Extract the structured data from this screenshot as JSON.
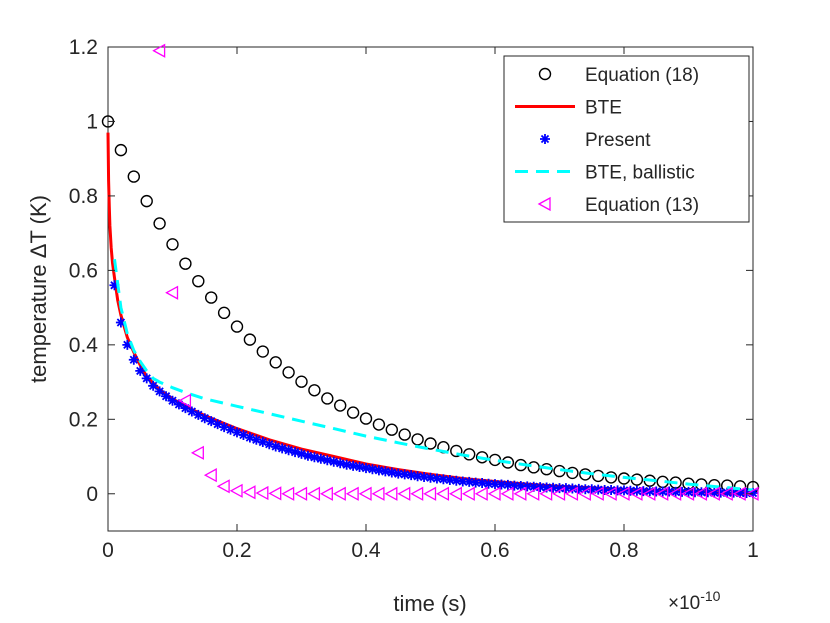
{
  "chart_data": {
    "type": "line",
    "xlabel": "time (s)",
    "ylabel": "temperature ΔT (K)",
    "x_exponent_base": "×10",
    "x_exponent_power": "-10",
    "xlim": [
      0,
      1
    ],
    "ylim": [
      -0.1,
      1.2
    ],
    "xticks": [
      0,
      0.2,
      0.4,
      0.6,
      0.8,
      1
    ],
    "yticks": [
      0,
      0.2,
      0.4,
      0.6,
      0.8,
      1,
      1.2
    ],
    "xtick_labels": [
      "0",
      "0.2",
      "0.4",
      "0.6",
      "0.8",
      "1"
    ],
    "ytick_labels": [
      "0",
      "0.2",
      "0.4",
      "0.6",
      "0.8",
      "1",
      "1.2"
    ],
    "grid": false,
    "legend_position": "top-right",
    "series": [
      {
        "name": "Equation (18)",
        "style": "circle",
        "color": "#000000",
        "x": [
          0,
          0.02,
          0.04,
          0.06,
          0.08,
          0.1,
          0.12,
          0.14,
          0.16,
          0.18,
          0.2,
          0.22,
          0.24,
          0.26,
          0.28,
          0.3,
          0.32,
          0.34,
          0.36,
          0.38,
          0.4,
          0.42,
          0.44,
          0.46,
          0.48,
          0.5,
          0.52,
          0.54,
          0.56,
          0.58,
          0.6,
          0.62,
          0.64,
          0.66,
          0.68,
          0.7,
          0.72,
          0.74,
          0.76,
          0.78,
          0.8,
          0.82,
          0.84,
          0.86,
          0.88,
          0.9,
          0.92,
          0.94,
          0.96,
          0.98,
          1
        ],
        "y": [
          1,
          0.923,
          0.852,
          0.786,
          0.726,
          0.67,
          0.618,
          0.571,
          0.527,
          0.486,
          0.449,
          0.414,
          0.382,
          0.353,
          0.326,
          0.301,
          0.278,
          0.256,
          0.237,
          0.218,
          0.202,
          0.186,
          0.172,
          0.159,
          0.146,
          0.135,
          0.125,
          0.115,
          0.106,
          0.098,
          0.091,
          0.084,
          0.077,
          0.071,
          0.066,
          0.061,
          0.056,
          0.052,
          0.048,
          0.044,
          0.041,
          0.038,
          0.035,
          0.032,
          0.03,
          0.027,
          0.025,
          0.023,
          0.022,
          0.02,
          0.018
        ]
      },
      {
        "name": "BTE",
        "style": "solid",
        "color": "#ff0000",
        "x": [
          0,
          0.001,
          0.002,
          0.003,
          0.005,
          0.007,
          0.01,
          0.015,
          0.02,
          0.03,
          0.04,
          0.05,
          0.06,
          0.08,
          0.1,
          0.12,
          0.15,
          0.2,
          0.25,
          0.3,
          0.35,
          0.4,
          0.45,
          0.5,
          0.55,
          0.6,
          0.65,
          0.7,
          0.75,
          0.8,
          0.85,
          0.9,
          0.95,
          1
        ],
        "y": [
          0.97,
          0.84,
          0.77,
          0.72,
          0.66,
          0.62,
          0.58,
          0.52,
          0.48,
          0.42,
          0.38,
          0.345,
          0.315,
          0.28,
          0.255,
          0.235,
          0.21,
          0.175,
          0.145,
          0.12,
          0.1,
          0.08,
          0.065,
          0.052,
          0.041,
          0.033,
          0.026,
          0.02,
          0.016,
          0.012,
          0.009,
          0.006,
          0.003,
          0.001
        ]
      },
      {
        "name": "Present",
        "style": "star",
        "color": "#0000ff",
        "x": [
          0.01,
          0.02,
          0.03,
          0.04,
          0.05,
          0.06,
          0.07,
          0.08,
          0.09,
          0.1,
          0.11,
          0.12,
          0.13,
          0.14,
          0.15,
          0.16,
          0.17,
          0.18,
          0.19,
          0.2,
          0.21,
          0.22,
          0.23,
          0.24,
          0.25,
          0.26,
          0.27,
          0.28,
          0.29,
          0.3,
          0.31,
          0.32,
          0.33,
          0.34,
          0.35,
          0.36,
          0.37,
          0.38,
          0.39,
          0.4,
          0.41,
          0.42,
          0.43,
          0.44,
          0.45,
          0.46,
          0.47,
          0.48,
          0.49,
          0.5,
          0.51,
          0.52,
          0.53,
          0.54,
          0.55,
          0.56,
          0.57,
          0.58,
          0.59,
          0.6,
          0.61,
          0.62,
          0.63,
          0.64,
          0.65,
          0.66,
          0.67,
          0.68,
          0.69,
          0.7,
          0.71,
          0.72,
          0.73,
          0.74,
          0.75,
          0.76,
          0.77,
          0.78,
          0.79,
          0.8,
          0.81,
          0.82,
          0.83,
          0.84,
          0.85,
          0.86,
          0.87,
          0.88,
          0.89,
          0.9,
          0.91,
          0.92,
          0.93,
          0.94,
          0.95,
          0.96,
          0.97,
          0.98,
          0.99,
          1
        ],
        "y": [
          0.56,
          0.46,
          0.4,
          0.36,
          0.33,
          0.31,
          0.29,
          0.275,
          0.262,
          0.25,
          0.24,
          0.23,
          0.221,
          0.212,
          0.203,
          0.195,
          0.187,
          0.179,
          0.172,
          0.165,
          0.158,
          0.151,
          0.145,
          0.139,
          0.133,
          0.127,
          0.122,
          0.117,
          0.112,
          0.107,
          0.102,
          0.098,
          0.094,
          0.09,
          0.086,
          0.082,
          0.078,
          0.075,
          0.072,
          0.069,
          0.066,
          0.063,
          0.06,
          0.057,
          0.054,
          0.052,
          0.05,
          0.047,
          0.045,
          0.043,
          0.041,
          0.039,
          0.037,
          0.035,
          0.033,
          0.032,
          0.03,
          0.029,
          0.027,
          0.026,
          0.025,
          0.024,
          0.022,
          0.021,
          0.02,
          0.019,
          0.018,
          0.017,
          0.016,
          0.015,
          0.015,
          0.014,
          0.013,
          0.012,
          0.012,
          0.011,
          0.01,
          0.01,
          0.009,
          0.009,
          0.008,
          0.008,
          0.007,
          0.007,
          0.006,
          0.006,
          0.006,
          0.005,
          0.005,
          0.005,
          0.004,
          0.004,
          0.004,
          0.003,
          0.003,
          0.003,
          0.003,
          0.002,
          0.002,
          0.002
        ]
      },
      {
        "name": "BTE, ballistic",
        "style": "dashed",
        "color": "#00ffff",
        "x": [
          0.01,
          0.02,
          0.03,
          0.04,
          0.05,
          0.06,
          0.07,
          0.08,
          0.1,
          0.12,
          0.15,
          0.2,
          0.25,
          0.3,
          0.35,
          0.4,
          0.45,
          0.5,
          0.55,
          0.6,
          0.65,
          0.7,
          0.75,
          0.8,
          0.85,
          0.9,
          0.95,
          1
        ],
        "y": [
          0.63,
          0.5,
          0.43,
          0.385,
          0.355,
          0.33,
          0.31,
          0.3,
          0.285,
          0.272,
          0.255,
          0.235,
          0.215,
          0.195,
          0.175,
          0.155,
          0.137,
          0.12,
          0.104,
          0.09,
          0.077,
          0.065,
          0.054,
          0.044,
          0.035,
          0.026,
          0.018,
          0.01
        ]
      },
      {
        "name": "Equation (13)",
        "style": "triangle-left",
        "color": "#ff00ff",
        "x": [
          0.08,
          0.1,
          0.12,
          0.14,
          0.16,
          0.18,
          0.2,
          0.22,
          0.24,
          0.26,
          0.28,
          0.3,
          0.32,
          0.34,
          0.36,
          0.38,
          0.4,
          0.42,
          0.44,
          0.46,
          0.48,
          0.5,
          0.52,
          0.54,
          0.56,
          0.58,
          0.6,
          0.62,
          0.64,
          0.66,
          0.68,
          0.7,
          0.72,
          0.74,
          0.76,
          0.78,
          0.8,
          0.82,
          0.84,
          0.86,
          0.88,
          0.9,
          0.92,
          0.94,
          0.96,
          0.98,
          1
        ],
        "y": [
          1.19,
          0.54,
          0.25,
          0.11,
          0.05,
          0.02,
          0.008,
          0.004,
          0.002,
          0.001,
          0,
          0,
          0,
          0,
          0,
          0,
          0,
          0,
          0,
          0,
          0,
          0,
          0,
          0,
          0,
          0,
          0,
          0,
          0,
          0,
          0,
          0,
          0,
          0,
          0,
          0,
          0,
          0,
          0,
          0,
          0,
          0,
          0,
          0,
          0,
          0,
          0
        ]
      }
    ]
  }
}
